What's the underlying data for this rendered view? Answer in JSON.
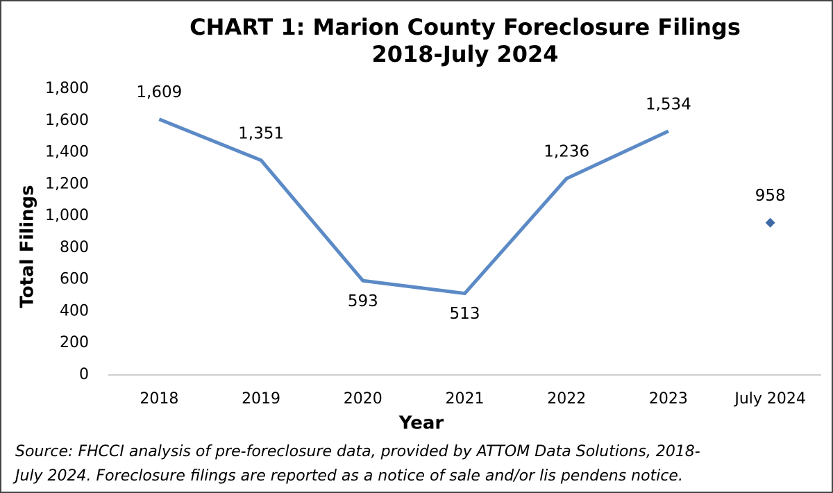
{
  "chart_data": {
    "type": "line",
    "title": [
      "CHART 1: Marion County Foreclosure Filings",
      "2018-July 2024"
    ],
    "y_label": "Total Filings",
    "x_label": "Year",
    "source": [
      "Source: FHCCI analysis of pre-foreclosure data, provided by ATTOM Data Solutions, 2018-",
      "July 2024. Foreclosure filings are reported as a notice of sale and/or lis pendens notice."
    ],
    "categories": [
      "2018",
      "2019",
      "2020",
      "2021",
      "2022",
      "2023",
      "July 2024"
    ],
    "series": [
      {
        "color": "#5b8ac6",
        "style": "line",
        "values": [
          1609,
          1351,
          593,
          513,
          1236,
          1534,
          null
        ],
        "value_labels": [
          "1,609",
          "1,351",
          "593",
          "513",
          "1,236",
          "1,534",
          null
        ]
      },
      {
        "color": "#3f6aa6",
        "style": "marker",
        "values": [
          null,
          null,
          null,
          null,
          null,
          null,
          958
        ],
        "value_labels": [
          null,
          null,
          null,
          null,
          null,
          null,
          "958"
        ]
      }
    ],
    "ylim": [
      0,
      1800
    ],
    "yticks": [
      0,
      200,
      400,
      600,
      800,
      {
        "value": 1000,
        "label": "1,000"
      },
      {
        "value": 1200,
        "label": "1,200"
      },
      {
        "value": 1400,
        "label": "1,400"
      },
      {
        "value": 1600,
        "label": "1,600"
      },
      {
        "value": 1800,
        "label": "1,800"
      }
    ],
    "grid": false
  }
}
